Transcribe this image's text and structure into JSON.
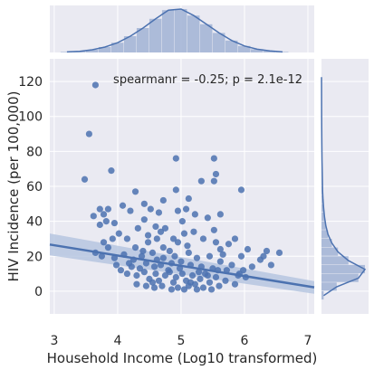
{
  "chart_data": {
    "type": "scatter",
    "xlabel": "Household Income (Log10 transformed)",
    "ylabel": "HIV Incidence (per 100,000)",
    "annotation": "spearmanr = -0.25; p = 2.1e-12",
    "xlim": [
      2.93,
      7.1
    ],
    "ylim": [
      -13,
      133
    ],
    "xticks": [
      3,
      4,
      5,
      6,
      7
    ],
    "xtick_labels": [
      "3",
      "4",
      "5",
      "6",
      "7"
    ],
    "yticks": [
      0,
      20,
      40,
      60,
      80,
      100,
      120
    ],
    "ytick_labels": [
      "0",
      "20",
      "40",
      "60",
      "80",
      "100",
      "120"
    ],
    "grid": true,
    "colors": {
      "points": "#4c72b0",
      "line": "#4c72b0",
      "band": "#b3c3de",
      "background": "#eaeaf2",
      "grid": "#ffffff",
      "marginal_fill": "#a5b6d6"
    },
    "regression": {
      "x": [
        2.93,
        7.1
      ],
      "y": [
        26.7,
        2.2
      ],
      "ci_low": [
        20.5,
        -1.5
      ],
      "ci_high": [
        33.0,
        5.8
      ]
    },
    "series": [
      {
        "points": [
          [
            3.55,
            90
          ],
          [
            3.65,
            118
          ],
          [
            3.48,
            64
          ],
          [
            3.9,
            69
          ],
          [
            4.28,
            57
          ],
          [
            4.92,
            76
          ],
          [
            5.52,
            76
          ],
          [
            5.55,
            67
          ],
          [
            5.32,
            63
          ],
          [
            5.52,
            63
          ],
          [
            5.95,
            58
          ],
          [
            4.92,
            58
          ],
          [
            5.12,
            53
          ],
          [
            4.72,
            52
          ],
          [
            4.42,
            50
          ],
          [
            4.52,
            47
          ],
          [
            3.62,
            43
          ],
          [
            3.72,
            47
          ],
          [
            3.78,
            44
          ],
          [
            3.85,
            47
          ],
          [
            4.08,
            49
          ],
          [
            4.2,
            46
          ],
          [
            4.65,
            45
          ],
          [
            4.95,
            46
          ],
          [
            5.08,
            47
          ],
          [
            5.22,
            44
          ],
          [
            5.42,
            42
          ],
          [
            5.62,
            44
          ],
          [
            5.02,
            40
          ],
          [
            4.42,
            41
          ],
          [
            3.82,
            40
          ],
          [
            3.72,
            38
          ],
          [
            3.95,
            39
          ],
          [
            4.32,
            36
          ],
          [
            4.6,
            37
          ],
          [
            4.68,
            34
          ],
          [
            4.75,
            36
          ],
          [
            4.02,
            33
          ],
          [
            3.92,
            30
          ],
          [
            3.78,
            28
          ],
          [
            3.85,
            25
          ],
          [
            4.15,
            30
          ],
          [
            4.48,
            28
          ],
          [
            4.62,
            30
          ],
          [
            4.95,
            28
          ],
          [
            5.05,
            33
          ],
          [
            5.35,
            30
          ],
          [
            5.55,
            28
          ],
          [
            5.75,
            27
          ],
          [
            5.85,
            30
          ],
          [
            6.35,
            23
          ],
          [
            6.05,
            24
          ],
          [
            5.95,
            20
          ],
          [
            6.25,
            18
          ],
          [
            6.42,
            15
          ],
          [
            6.12,
            14
          ],
          [
            5.98,
            12
          ],
          [
            3.65,
            22
          ],
          [
            3.75,
            20
          ],
          [
            3.95,
            19
          ],
          [
            4.1,
            21
          ],
          [
            4.25,
            18
          ],
          [
            4.38,
            20
          ],
          [
            4.45,
            16
          ],
          [
            4.55,
            22
          ],
          [
            4.58,
            14
          ],
          [
            4.72,
            19
          ],
          [
            4.82,
            23
          ],
          [
            4.85,
            16
          ],
          [
            4.9,
            20
          ],
          [
            5.0,
            17
          ],
          [
            5.12,
            22
          ],
          [
            5.15,
            15
          ],
          [
            5.25,
            19
          ],
          [
            5.32,
            14
          ],
          [
            5.45,
            20
          ],
          [
            5.5,
            13
          ],
          [
            5.62,
            17
          ],
          [
            5.72,
            12
          ],
          [
            5.8,
            15
          ],
          [
            5.92,
            10
          ],
          [
            6.02,
            8
          ],
          [
            4.05,
            12
          ],
          [
            4.15,
            10
          ],
          [
            4.22,
            14
          ],
          [
            4.3,
            9
          ],
          [
            4.42,
            11
          ],
          [
            4.5,
            7
          ],
          [
            4.6,
            10
          ],
          [
            4.65,
            6
          ],
          [
            4.75,
            9
          ],
          [
            4.8,
            12
          ],
          [
            4.88,
            5
          ],
          [
            4.92,
            8
          ],
          [
            5.02,
            10
          ],
          [
            5.08,
            6
          ],
          [
            5.18,
            9
          ],
          [
            5.22,
            4
          ],
          [
            5.3,
            7
          ],
          [
            5.38,
            10
          ],
          [
            5.45,
            5
          ],
          [
            5.55,
            8
          ],
          [
            5.6,
            3
          ],
          [
            5.7,
            6
          ],
          [
            5.85,
            4
          ],
          [
            4.3,
            4
          ],
          [
            4.45,
            3
          ],
          [
            4.58,
            2
          ],
          [
            4.7,
            3
          ],
          [
            4.85,
            1
          ],
          [
            4.95,
            2
          ],
          [
            5.05,
            1
          ],
          [
            5.12,
            3
          ],
          [
            5.25,
            1
          ],
          [
            5.35,
            2
          ],
          [
            5.48,
            1
          ],
          [
            4.35,
            13
          ],
          [
            4.68,
            15
          ],
          [
            4.98,
            13
          ],
          [
            5.28,
            11
          ],
          [
            5.58,
            12
          ],
          [
            4.18,
            16
          ],
          [
            4.82,
            11
          ],
          [
            5.42,
            9
          ],
          [
            4.55,
            5
          ],
          [
            5.15,
            5
          ],
          [
            3.98,
            15
          ],
          [
            5.66,
            21
          ],
          [
            6.55,
            22
          ],
          [
            4.72,
            25
          ],
          [
            5.1,
            26
          ],
          [
            4.28,
            25
          ],
          [
            4.4,
            23
          ],
          [
            5.62,
            24
          ],
          [
            4.48,
            32
          ],
          [
            4.88,
            30
          ],
          [
            5.52,
            35
          ],
          [
            5.2,
            34
          ],
          [
            6.3,
            20
          ],
          [
            4.62,
            18
          ],
          [
            5.9,
            9
          ]
        ]
      }
    ],
    "marginal_x": {
      "bins": [
        3.2,
        3.4,
        3.6,
        3.8,
        4.0,
        4.2,
        4.4,
        4.6,
        4.8,
        5.0,
        5.2,
        5.4,
        5.6,
        5.8,
        6.0,
        6.2,
        6.4,
        6.6
      ],
      "density": [
        0.01,
        0.02,
        0.05,
        0.1,
        0.18,
        0.3,
        0.45,
        0.62,
        0.78,
        0.8,
        0.68,
        0.52,
        0.36,
        0.22,
        0.12,
        0.06,
        0.03,
        0.01
      ]
    },
    "marginal_y": {
      "bins": [
        -5,
        0,
        5,
        10,
        15,
        20,
        25,
        30,
        35,
        40,
        45,
        50,
        55,
        60,
        70,
        80,
        90,
        100,
        110,
        120
      ],
      "density": [
        0.05,
        0.35,
        0.85,
        1.0,
        0.62,
        0.38,
        0.24,
        0.15,
        0.1,
        0.07,
        0.05,
        0.035,
        0.025,
        0.02,
        0.012,
        0.008,
        0.005,
        0.003,
        0.002,
        0.001
      ]
    }
  }
}
